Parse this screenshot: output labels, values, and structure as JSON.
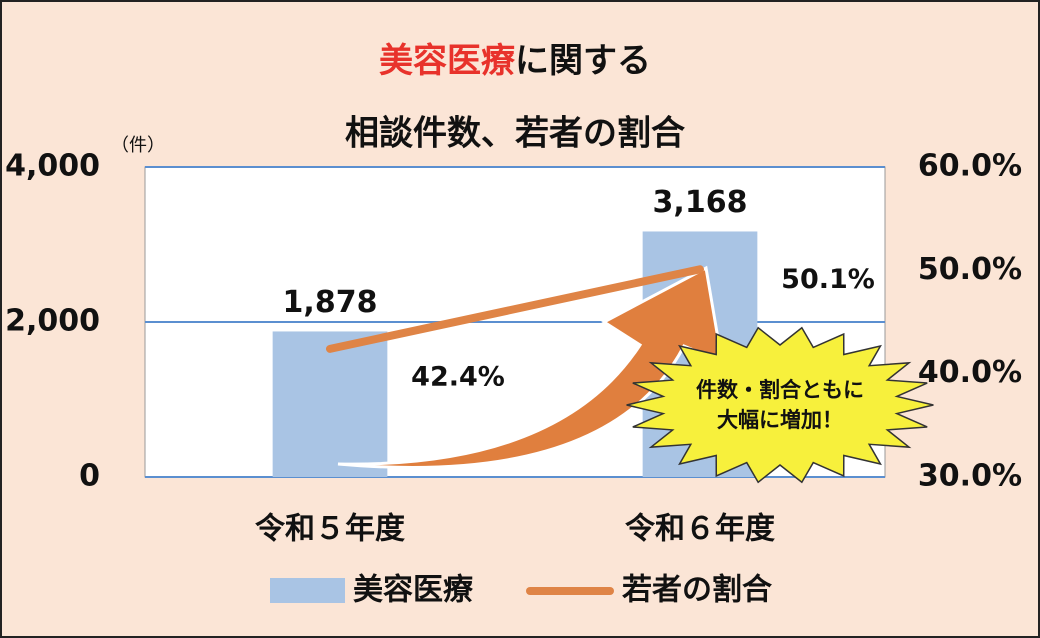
{
  "chart_data": {
    "type": "bar",
    "title_highlight": "美容医療",
    "title_rest": "に関する",
    "subtitle": "相談件数、若者の割合",
    "y_unit": "（件）",
    "categories": [
      "令和５年度",
      "令和６年度"
    ],
    "series": [
      {
        "name": "美容医療",
        "type": "bar",
        "color": "#a9c4e4",
        "values": [
          1878,
          3168
        ],
        "value_labels": [
          "1,878",
          "3,168"
        ]
      },
      {
        "name": "若者の割合",
        "type": "line",
        "axis": "y2",
        "color": "#df8446",
        "values": [
          42.4,
          50.1
        ],
        "value_labels": [
          "42.4%",
          "50.1%"
        ]
      }
    ],
    "ylim": [
      0,
      4000
    ],
    "yticks": [
      0,
      {
        "value": 2000,
        "label": "2,000"
      },
      {
        "value": 4000,
        "label": "4,000"
      }
    ],
    "y2lim": [
      30,
      60
    ],
    "y2ticks": [
      {
        "value": 30,
        "label": "30.0%"
      },
      {
        "value": 40,
        "label": "40.0%"
      },
      {
        "value": 50,
        "label": "50.0%"
      },
      {
        "value": 60,
        "label": "60.0%"
      }
    ],
    "grid": true,
    "annotation": [
      "件数・割合ともに",
      "大幅に増加！"
    ]
  }
}
